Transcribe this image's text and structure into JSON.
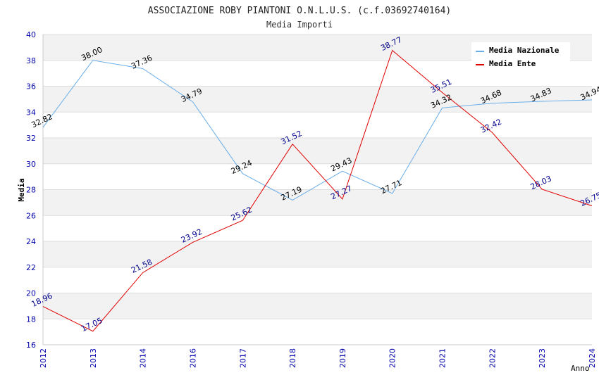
{
  "chart_data": {
    "type": "line",
    "title": "ASSOCIAZIONE ROBY PIANTONI O.N.L.U.S. (c.f.03692740164)",
    "subtitle": "Media Importi",
    "xlabel": "Anno",
    "ylabel": "Media",
    "categories": [
      "2012",
      "2013",
      "2014",
      "2016",
      "2017",
      "2018",
      "2019",
      "2020",
      "2021",
      "2022",
      "2023",
      "2024"
    ],
    "ylim": [
      16,
      40
    ],
    "yticks": [
      16,
      18,
      20,
      22,
      24,
      26,
      28,
      30,
      32,
      34,
      36,
      38,
      40
    ],
    "grid": true,
    "legend_position": "top-right",
    "series": [
      {
        "name": "Media Nazionale",
        "color": "#6aaee8",
        "label_color": "#000000",
        "values": [
          32.82,
          38.0,
          37.36,
          34.79,
          29.24,
          27.19,
          29.43,
          27.71,
          34.32,
          34.68,
          34.83,
          34.94
        ],
        "labels": [
          "32.82",
          "38.00",
          "37.36",
          "34.79",
          "29.24",
          "27.19",
          "29.43",
          "27.71",
          "34.32",
          "34.68",
          "34.83",
          "34.94"
        ]
      },
      {
        "name": "Media Ente",
        "color": "#e00000",
        "label_color": "#00008b",
        "values": [
          18.96,
          17.05,
          21.58,
          23.92,
          25.62,
          31.52,
          27.27,
          38.77,
          35.51,
          32.42,
          28.03,
          26.75
        ],
        "labels": [
          "18.96",
          "17.05",
          "21.58",
          "23.92",
          "25.62",
          "31.52",
          "27.27",
          "38.77",
          "35.51",
          "32.42",
          "28.03",
          "26.75"
        ]
      }
    ]
  }
}
